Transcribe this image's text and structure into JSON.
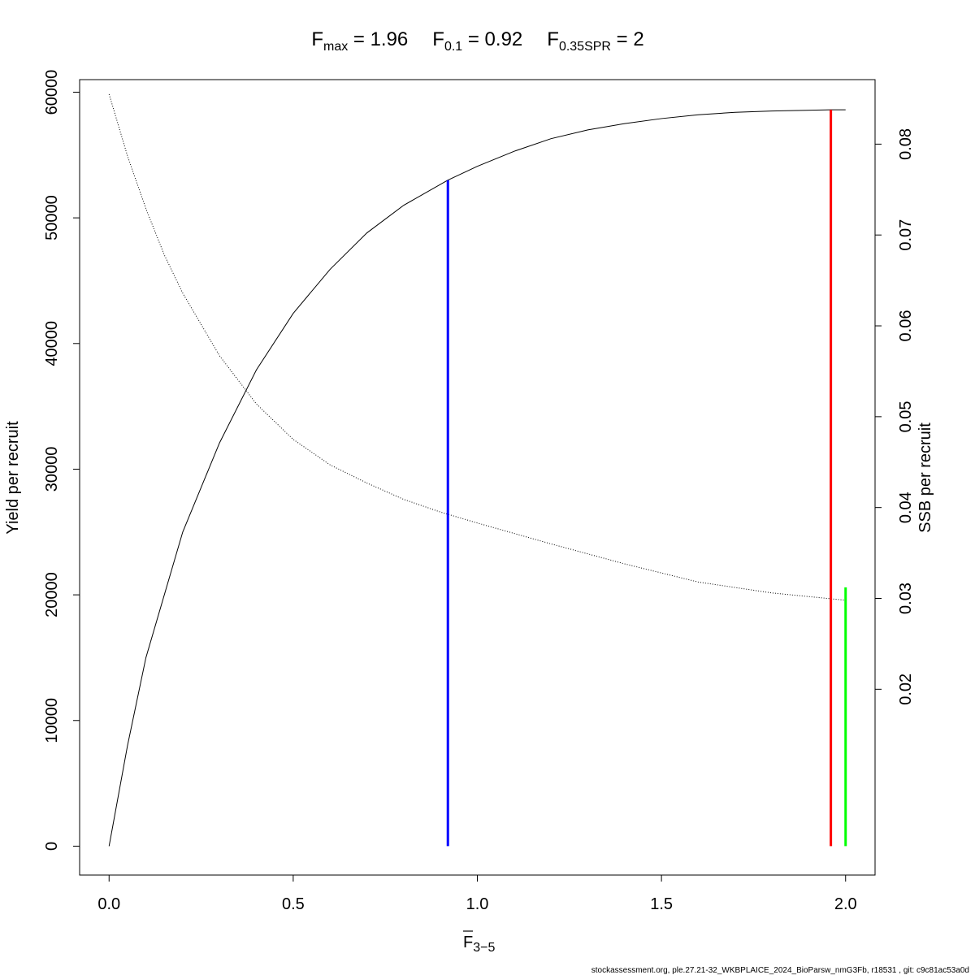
{
  "chart_data": {
    "type": "line",
    "title_terms": [
      {
        "sym": "F",
        "sub": "max",
        "val": "= 1.96"
      },
      {
        "sym": "F",
        "sub": "0.1",
        "val": "= 0.92"
      },
      {
        "sym": "F",
        "sub": "0.35SPR",
        "val": "= 2"
      }
    ],
    "xlabel": {
      "main": "F",
      "sub": "3−5"
    },
    "ylabel_left": "Yield per recruit",
    "ylabel_right": "SSB per recruit",
    "xlim": [
      -0.08,
      2.08
    ],
    "ylim_left": [
      -2300,
      61000
    ],
    "ylim_right": [
      -0.00045,
      0.0871
    ],
    "x_ticks": [
      0.0,
      0.5,
      1.0,
      1.5,
      2.0
    ],
    "x_tick_labels": [
      "0.0",
      "0.5",
      "1.0",
      "1.5",
      "2.0"
    ],
    "y_left_ticks": [
      0,
      10000,
      20000,
      30000,
      40000,
      50000,
      60000
    ],
    "y_left_tick_labels": [
      "0",
      "10000",
      "20000",
      "30000",
      "40000",
      "50000",
      "60000"
    ],
    "y_right_ticks": [
      0.02,
      0.03,
      0.04,
      0.05,
      0.06,
      0.07,
      0.08
    ],
    "y_right_tick_labels": [
      "0.02",
      "0.03",
      "0.04",
      "0.05",
      "0.06",
      "0.07",
      "0.08"
    ],
    "series": [
      {
        "axis": "left",
        "style": "solid",
        "color": "#000000",
        "x": [
          0,
          0.05,
          0.1,
          0.2,
          0.3,
          0.4,
          0.5,
          0.6,
          0.7,
          0.8,
          0.92,
          1.0,
          1.1,
          1.2,
          1.3,
          1.4,
          1.5,
          1.6,
          1.7,
          1.8,
          1.96,
          2.0
        ],
        "values": [
          0,
          8000,
          15000,
          25000,
          32100,
          37900,
          42400,
          45900,
          48800,
          51000,
          53000,
          54100,
          55300,
          56300,
          57000,
          57500,
          57900,
          58200,
          58400,
          58500,
          58600,
          58600
        ]
      },
      {
        "axis": "right",
        "style": "dotted",
        "color": "#000000",
        "x": [
          0,
          0.05,
          0.1,
          0.15,
          0.2,
          0.3,
          0.4,
          0.5,
          0.6,
          0.7,
          0.8,
          0.9,
          1.0,
          1.2,
          1.4,
          1.6,
          1.8,
          2.0
        ],
        "values": [
          0.0855,
          0.0787,
          0.0729,
          0.0678,
          0.0636,
          0.0567,
          0.0514,
          0.0475,
          0.0447,
          0.0427,
          0.0409,
          0.0395,
          0.0383,
          0.036,
          0.0338,
          0.0318,
          0.0306,
          0.0298
        ]
      }
    ],
    "reference_lines": [
      {
        "x": 0.92,
        "y_from": 0,
        "y_to": 53000,
        "color": "#0000ff"
      },
      {
        "x": 1.96,
        "y_from": 0,
        "y_to": 58600,
        "color": "#ff0000"
      },
      {
        "x": 2.0,
        "y_from": 0,
        "y_to": 20600,
        "color": "#00ff00"
      }
    ],
    "grid": false,
    "footer": "stockassessment.org, ple.27.21-32_WKBPLAICE_2024_BioParsw_nmG3Fb, r18531 , git: c9c81ac53a0d"
  }
}
